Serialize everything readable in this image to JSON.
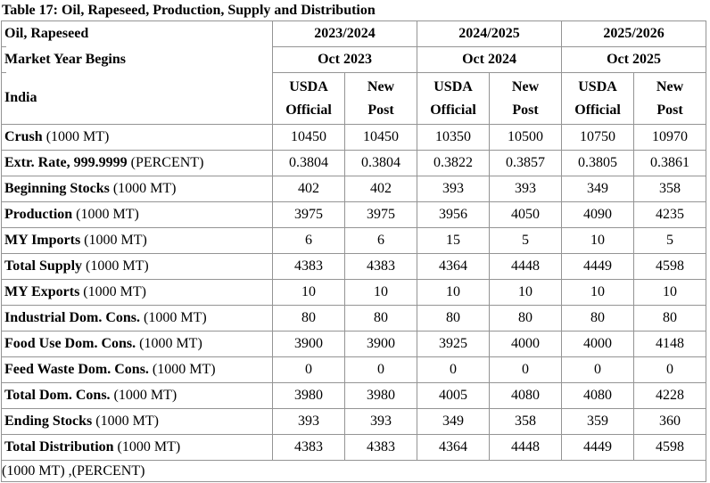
{
  "title": "Table 17: Oil, Rapeseed, Production, Supply and Distribution",
  "table": {
    "corner": {
      "line1": "Oil, Rapeseed",
      "line2": "Market Year Begins",
      "line3": "India"
    },
    "year_groups": [
      {
        "year": "2023/2024",
        "begins": "Oct 2023"
      },
      {
        "year": "2024/2025",
        "begins": "Oct 2024"
      },
      {
        "year": "2025/2026",
        "begins": "Oct 2025"
      }
    ],
    "source_headers": {
      "official_line1": "USDA",
      "official_line2": "Official",
      "post_line1": "New",
      "post_line2": "Post"
    },
    "rows": [
      {
        "label": "Crush",
        "unit": "(1000 MT)",
        "values": [
          "10450",
          "10450",
          "10350",
          "10500",
          "10750",
          "10970"
        ]
      },
      {
        "label": "Extr. Rate, 999.9999",
        "unit": "(PERCENT)",
        "values": [
          "0.3804",
          "0.3804",
          "0.3822",
          "0.3857",
          "0.3805",
          "0.3861"
        ]
      },
      {
        "label": "Beginning Stocks",
        "unit": "(1000 MT)",
        "values": [
          "402",
          "402",
          "393",
          "393",
          "349",
          "358"
        ]
      },
      {
        "label": "Production",
        "unit": "(1000 MT)",
        "values": [
          "3975",
          "3975",
          "3956",
          "4050",
          "4090",
          "4235"
        ]
      },
      {
        "label": "MY Imports",
        "unit": "(1000 MT)",
        "values": [
          "6",
          "6",
          "15",
          "5",
          "10",
          "5"
        ]
      },
      {
        "label": "Total Supply",
        "unit": "(1000 MT)",
        "values": [
          "4383",
          "4383",
          "4364",
          "4448",
          "4449",
          "4598"
        ]
      },
      {
        "label": "MY Exports",
        "unit": "(1000 MT)",
        "values": [
          "10",
          "10",
          "10",
          "10",
          "10",
          "10"
        ]
      },
      {
        "label": "Industrial Dom. Cons.",
        "unit": "(1000 MT)",
        "values": [
          "80",
          "80",
          "80",
          "80",
          "80",
          "80"
        ]
      },
      {
        "label": "Food Use Dom. Cons.",
        "unit": "(1000 MT)",
        "values": [
          "3900",
          "3900",
          "3925",
          "4000",
          "4000",
          "4148"
        ]
      },
      {
        "label": "Feed Waste Dom. Cons.",
        "unit": "(1000 MT)",
        "values": [
          "0",
          "0",
          "0",
          "0",
          "0",
          "0"
        ]
      },
      {
        "label": "Total Dom. Cons.",
        "unit": "(1000 MT)",
        "values": [
          "3980",
          "3980",
          "4005",
          "4080",
          "4080",
          "4228"
        ]
      },
      {
        "label": "Ending Stocks",
        "unit": "(1000 MT)",
        "values": [
          "393",
          "393",
          "349",
          "358",
          "359",
          "360"
        ]
      },
      {
        "label": "Total Distribution",
        "unit": "(1000 MT)",
        "values": [
          "4383",
          "4383",
          "4364",
          "4448",
          "4449",
          "4598"
        ]
      }
    ],
    "footer": "(1000 MT) ,(PERCENT)"
  },
  "colors": {
    "border": "#949494",
    "text": "#000000",
    "background": "#ffffff"
  }
}
